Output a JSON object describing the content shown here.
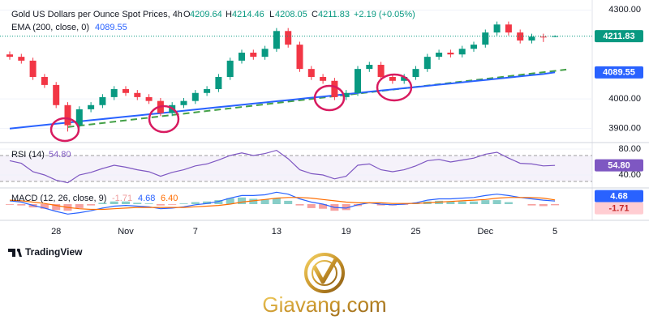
{
  "chart_data": [
    {
      "type": "candlestick",
      "title": "Gold US Dollars per Ounce Spot Prices, 4h",
      "open_label": "O",
      "high_label": "H",
      "low_label": "L",
      "close_label": "C",
      "change": "+2.19 (+0.05%)",
      "categories": [
        null,
        null,
        null,
        null,
        "28",
        null,
        null,
        null,
        null,
        null,
        "Nov",
        null,
        null,
        null,
        null,
        null,
        "7",
        null,
        null,
        null,
        null,
        null,
        null,
        "13",
        null,
        null,
        null,
        null,
        null,
        "19",
        null,
        null,
        null,
        null,
        null,
        "25",
        null,
        null,
        null,
        null,
        null,
        "Dec",
        null,
        null,
        null,
        null,
        null,
        "5"
      ],
      "open": [
        4150,
        4142,
        4129,
        4074,
        4047,
        3979,
        3911,
        3965,
        3979,
        4006,
        4033,
        4020,
        4006,
        3993,
        3952,
        3979,
        3993,
        4020,
        4033,
        4074,
        4129,
        4156,
        4142,
        4169,
        4229,
        4183,
        4101,
        4074,
        4061,
        4006,
        4020,
        4101,
        4115,
        4074,
        4061,
        4074,
        4101,
        4142,
        4156,
        4150,
        4169,
        4183,
        4224,
        4251,
        4224,
        4197,
        4210,
        4209.64
      ],
      "high": [
        4160,
        4152,
        4139,
        4084,
        4057,
        3989,
        3975,
        3989,
        4016,
        4043,
        4043,
        4030,
        4016,
        4003,
        3989,
        4003,
        4030,
        4043,
        4084,
        4139,
        4166,
        4166,
        4179,
        4239,
        4239,
        4193,
        4111,
        4084,
        4071,
        4030,
        4111,
        4125,
        4125,
        4084,
        4084,
        4111,
        4152,
        4166,
        4166,
        4179,
        4193,
        4234,
        4261,
        4261,
        4234,
        4220,
        4220,
        4214.46
      ],
      "low": [
        4132,
        4119,
        4064,
        4037,
        3969,
        3890,
        3901,
        3955,
        3969,
        3996,
        4010,
        3996,
        3983,
        3942,
        3942,
        3969,
        3983,
        4010,
        4023,
        4064,
        4119,
        4132,
        4132,
        4159,
        4173,
        4091,
        4064,
        4051,
        3996,
        3996,
        4010,
        4091,
        4064,
        4051,
        4051,
        4064,
        4091,
        4132,
        4140,
        4140,
        4159,
        4173,
        4214,
        4214,
        4187,
        4187,
        4192,
        4208.05
      ],
      "close": [
        4142,
        4129,
        4074,
        4047,
        3979,
        3911,
        3965,
        3979,
        4006,
        4033,
        4020,
        4006,
        3993,
        3952,
        3979,
        3993,
        4020,
        4033,
        4074,
        4129,
        4156,
        4142,
        4169,
        4229,
        4183,
        4101,
        4074,
        4061,
        4006,
        4020,
        4101,
        4115,
        4074,
        4061,
        4074,
        4101,
        4142,
        4156,
        4150,
        4169,
        4183,
        4224,
        4251,
        4224,
        4197,
        4210,
        4209.64,
        4211.83
      ],
      "up_color": "#089981",
      "down_color": "#f23645",
      "series": [
        {
          "name": "EMA (200, close, 0)",
          "color": "#2962ff",
          "values": [
            3900,
            3904,
            3908,
            3912,
            3916,
            3920,
            3924,
            3928,
            3932,
            3936,
            3940,
            3944,
            3948,
            3952,
            3956,
            3960,
            3964,
            3968,
            3972,
            3976,
            3980,
            3984,
            3988,
            3992,
            3996,
            4000,
            4004,
            4008,
            4012,
            4016,
            4020,
            4024,
            4028,
            4032,
            4036,
            4040,
            4044,
            4048,
            4052,
            4056,
            4060,
            4064,
            4068,
            4072,
            4076,
            4080,
            4084,
            4089.55
          ]
        }
      ],
      "trendline": {
        "start": 3905,
        "end": 4099,
        "color": "#43a047"
      },
      "ylim": [
        3880,
        4320
      ],
      "yticks": [
        {
          "value": 3900,
          "label": "3900.00"
        },
        {
          "value": 4000,
          "label": "4000.00"
        },
        {
          "value": 4300,
          "label": "4300.00"
        }
      ]
    },
    {
      "type": "line",
      "series": [
        {
          "name": "RSI (14)",
          "color": "#7e57c2",
          "values": [
            62,
            58,
            45,
            40,
            32,
            28,
            40,
            44,
            50,
            55,
            52,
            48,
            45,
            38,
            44,
            48,
            54,
            57,
            63,
            70,
            74,
            70,
            73,
            78,
            65,
            48,
            42,
            40,
            34,
            38,
            55,
            57,
            48,
            45,
            48,
            54,
            62,
            64,
            60,
            63,
            66,
            72,
            75,
            66,
            58,
            57,
            54,
            54.8
          ],
          "value_labels": [
            null,
            null,
            null,
            null,
            null,
            null,
            null,
            null,
            null,
            null,
            null,
            null,
            null,
            null,
            null,
            null,
            null,
            null,
            null,
            null,
            null,
            null,
            null,
            null,
            null,
            null,
            null,
            null,
            null,
            null,
            null,
            null,
            null,
            null,
            null,
            null,
            null,
            null,
            null,
            null,
            null,
            null,
            null,
            null,
            null,
            null,
            null,
            "54.80"
          ]
        }
      ],
      "levels": [
        70,
        30
      ],
      "ylim": [
        22.5,
        87.5
      ],
      "yticks": [
        {
          "value": 80,
          "label": "80.00"
        },
        {
          "value": 40,
          "label": "40.00"
        }
      ]
    },
    {
      "type": "macd",
      "title": "MACD (12, 26, close, 9)",
      "series": [
        {
          "color": "#ef5350",
          "up_color": "#26a69a",
          "values": [
            -1,
            -2,
            -5,
            -7,
            -9,
            -10,
            -6,
            -2,
            2,
            4,
            4,
            2,
            1,
            -2,
            -1,
            1,
            3,
            4,
            6,
            9,
            10,
            8,
            7,
            9,
            5,
            -2,
            -6,
            -7,
            -10,
            -9,
            -3,
            0,
            -2,
            -2,
            -1,
            1,
            4,
            5,
            4,
            4,
            4,
            6,
            6,
            3,
            0,
            -2,
            -3,
            -1.71
          ]
        },
        {
          "color": "#2962ff",
          "values": [
            5,
            3,
            -2,
            -6,
            -11,
            -15,
            -13,
            -10,
            -6,
            -3,
            -2,
            -3,
            -4,
            -7,
            -6,
            -4,
            -1,
            1,
            4,
            9,
            13,
            13,
            14,
            18,
            15,
            8,
            3,
            0,
            -5,
            -6,
            -1,
            2,
            0,
            -1,
            0,
            2,
            6,
            8,
            8,
            9,
            10,
            13,
            15,
            13,
            10,
            8,
            6,
            4.68
          ]
        },
        {
          "color": "#ff6d00",
          "values": [
            6,
            5,
            3,
            1,
            -2,
            -5,
            -7,
            -8,
            -8,
            -7,
            -6,
            -5,
            -5,
            -5,
            -5,
            -5,
            -4,
            -3,
            -2,
            0,
            3,
            5,
            7,
            9,
            10,
            10,
            9,
            7,
            5,
            3,
            2,
            2,
            2,
            1,
            1,
            1,
            2,
            3,
            4,
            5,
            6,
            7,
            9,
            10,
            10,
            10,
            9,
            6.4
          ],
          "value_labels": [
            null,
            null,
            null,
            null,
            null,
            null,
            null,
            null,
            null,
            null,
            null,
            null,
            null,
            null,
            null,
            null,
            null,
            null,
            null,
            null,
            null,
            null,
            null,
            null,
            null,
            null,
            null,
            null,
            null,
            null,
            null,
            null,
            null,
            null,
            null,
            null,
            null,
            null,
            null,
            null,
            null,
            null,
            null,
            null,
            null,
            null,
            null,
            "6.40"
          ]
        }
      ],
      "ylim": [
        -22,
        22
      ]
    }
  ],
  "brand": "TradingView",
  "watermark": "Giavang.com"
}
